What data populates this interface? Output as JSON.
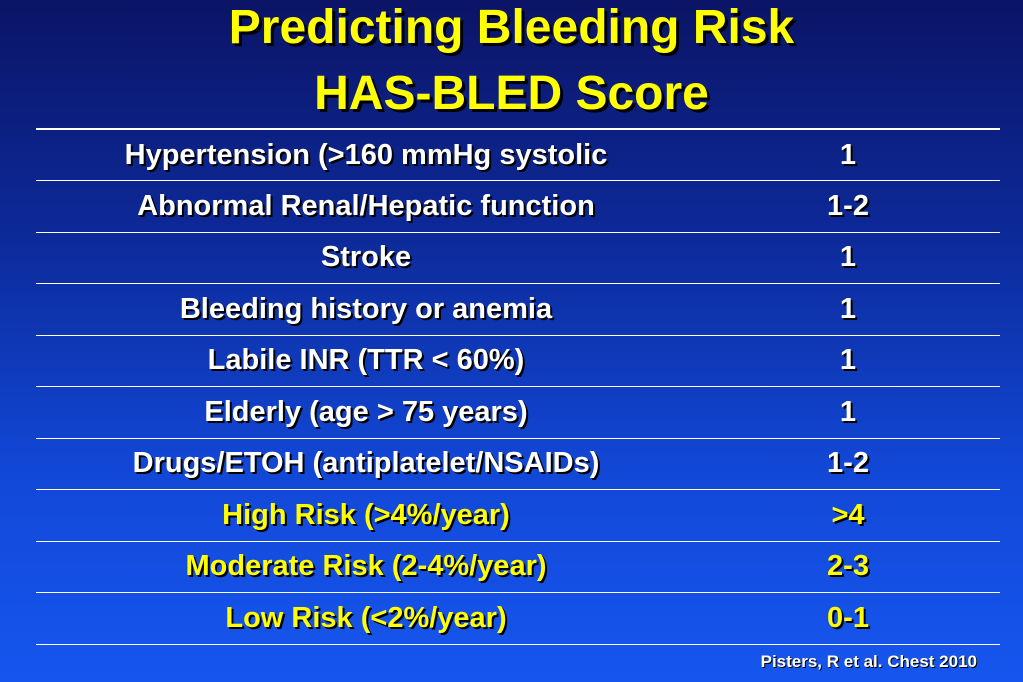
{
  "title_line1": "Predicting Bleeding Risk",
  "title_line2": "HAS-BLED Score",
  "rows": [
    {
      "label": "Hypertension (>160 mmHg systolic",
      "value": "1"
    },
    {
      "label": "Abnormal Renal/Hepatic function",
      "value": "1-2"
    },
    {
      "label": "Stroke",
      "value": "1"
    },
    {
      "label": "Bleeding history or anemia",
      "value": "1"
    },
    {
      "label": "Labile INR (TTR < 60%)",
      "value": "1"
    },
    {
      "label": "Elderly (age > 75 years)",
      "value": "1"
    },
    {
      "label": "Drugs/ETOH (antiplatelet/NSAIDs)",
      "value": "1-2"
    },
    {
      "label": "High Risk (>4%/year)",
      "value": ">4"
    },
    {
      "label": "Moderate Risk (2-4%/year)",
      "value": "2-3"
    },
    {
      "label": "Low Risk (<2%/year)",
      "value": "0-1"
    }
  ],
  "citation": "Pisters, R et al. Chest 2010",
  "colors": {
    "title": "#ffff00",
    "risk_rows": "#ffff00",
    "text": "#ffffff",
    "background": "#1248d8"
  }
}
